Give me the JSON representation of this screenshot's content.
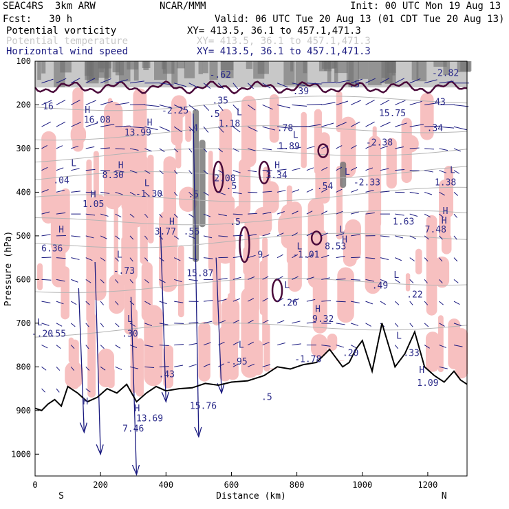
{
  "header": {
    "model": "SEAC4RS  3km ARW",
    "org": "NCAR/MMM",
    "init": "Init: 00 UTC Mon 19 Aug 13",
    "fcst": "Fcst:   30 h",
    "valid": "Valid: 06 UTC Tue 20 Aug 13 (01 CDT Tue 20 Aug 13)",
    "fields": [
      {
        "label": "Potential vorticity",
        "xy": "XY= 413.5, 36.1 to 457.1,471.3",
        "color": "#000000"
      },
      {
        "label": "Potential temperature",
        "xy": "XY= 413.5, 36.1 to 457.1,471.3",
        "color": "#b4b4b4"
      },
      {
        "label": "Horizontal wind speed",
        "xy": "XY= 413.5, 36.1 to 457.1,471.3",
        "color": "#1a1a80"
      }
    ]
  },
  "chart_data": {
    "type": "cross-section",
    "xlabel": "Distance (km)",
    "ylabel": "Pressure (hPa)",
    "xlim": [
      0,
      1320
    ],
    "ylim": [
      1050,
      100
    ],
    "xticks": [
      0,
      200,
      400,
      600,
      800,
      1000,
      1200
    ],
    "yticks": [
      100,
      200,
      300,
      400,
      500,
      600,
      700,
      800,
      900,
      1000
    ],
    "endpoint_labels": {
      "left": "S",
      "right": "N"
    },
    "colors": {
      "pv_fill": "#f7c0c0",
      "pv_contour": "#4a0a3a",
      "theta_contour": "#b4b4b4",
      "wind_vector": "#1a1a80",
      "terrain": "#000000",
      "high_pv_shade": "#707070"
    },
    "terrain_profile": {
      "x": [
        0,
        20,
        40,
        60,
        80,
        100,
        130,
        160,
        190,
        220,
        250,
        280,
        310,
        340,
        370,
        400,
        440,
        480,
        520,
        560,
        600,
        650,
        700,
        740,
        780,
        820,
        860,
        900,
        940,
        960,
        980,
        1000,
        1030,
        1060,
        1080,
        1100,
        1130,
        1160,
        1190,
        1220,
        1250,
        1280,
        1300,
        1320
      ],
      "p": [
        895,
        900,
        885,
        875,
        890,
        845,
        860,
        880,
        870,
        850,
        860,
        840,
        880,
        860,
        845,
        855,
        850,
        848,
        838,
        842,
        835,
        832,
        820,
        800,
        805,
        795,
        790,
        760,
        800,
        790,
        760,
        740,
        810,
        700,
        750,
        800,
        770,
        720,
        800,
        820,
        835,
        810,
        830,
        840
      ]
    },
    "annotations": [
      {
        "text": "16",
        "x": 40,
        "p": 210
      },
      {
        "text": "H",
        "x": 160,
        "p": 218
      },
      {
        "text": "16.08",
        "x": 190,
        "p": 241
      },
      {
        "text": "H",
        "x": 350,
        "p": 247
      },
      {
        "text": "13.99",
        "x": 314,
        "p": 270
      },
      {
        "text": "-2.25",
        "x": 428,
        "p": 220
      },
      {
        "text": ".4",
        "x": 482,
        "p": 260
      },
      {
        "text": ".5",
        "x": 548,
        "p": 228
      },
      {
        "text": "L",
        "x": 624,
        "p": 224
      },
      {
        "text": "1.18",
        "x": 594,
        "p": 250
      },
      {
        "text": ".78",
        "x": 764,
        "p": 260
      },
      {
        "text": "L",
        "x": 796,
        "p": 276
      },
      {
        "text": "1.89",
        "x": 776,
        "p": 302
      },
      {
        "text": "15.75",
        "x": 1092,
        "p": 226
      },
      {
        "text": "-2.38",
        "x": 1052,
        "p": 293
      },
      {
        "text": ".34",
        "x": 1222,
        "p": 260
      },
      {
        "text": "L",
        "x": 118,
        "p": 340
      },
      {
        "text": ".04",
        "x": 80,
        "p": 380
      },
      {
        "text": "H",
        "x": 262,
        "p": 345
      },
      {
        "text": "8.30",
        "x": 238,
        "p": 368
      },
      {
        "text": "H",
        "x": 178,
        "p": 412
      },
      {
        "text": "1.05",
        "x": 178,
        "p": 434
      },
      {
        "text": "L",
        "x": 342,
        "p": 386
      },
      {
        "text": "-1.30",
        "x": 348,
        "p": 410
      },
      {
        "text": ".5",
        "x": 484,
        "p": 412
      },
      {
        "text": "2.08",
        "x": 580,
        "p": 375
      },
      {
        "text": ".5",
        "x": 600,
        "p": 393
      },
      {
        "text": "H",
        "x": 740,
        "p": 345
      },
      {
        "text": "3.34",
        "x": 738,
        "p": 368
      },
      {
        "text": "L",
        "x": 954,
        "p": 360
      },
      {
        "text": "-2.33",
        "x": 1014,
        "p": 384
      },
      {
        "text": ".54",
        "x": 886,
        "p": 393
      },
      {
        "text": "L",
        "x": 1276,
        "p": 356
      },
      {
        "text": "1.38",
        "x": 1254,
        "p": 384
      },
      {
        "text": "H",
        "x": 1254,
        "p": 450
      },
      {
        "text": "1.63",
        "x": 1126,
        "p": 474
      },
      {
        "text": "7.48",
        "x": 1224,
        "p": 492
      },
      {
        "text": "H",
        "x": 1250,
        "p": 472
      },
      {
        "text": "H",
        "x": 80,
        "p": 492
      },
      {
        "text": "6.36",
        "x": 52,
        "p": 536
      },
      {
        "text": "H",
        "x": 418,
        "p": 474
      },
      {
        "text": "3.77",
        "x": 398,
        "p": 497
      },
      {
        "text": ".56",
        "x": 478,
        "p": 497
      },
      {
        "text": ".5",
        "x": 612,
        "p": 475
      },
      {
        "text": "L",
        "x": 258,
        "p": 550
      },
      {
        "text": "-.73",
        "x": 272,
        "p": 587
      },
      {
        "text": "15.87",
        "x": 504,
        "p": 592
      },
      {
        "text": "9",
        "x": 688,
        "p": 550
      },
      {
        "text": "L",
        "x": 808,
        "p": 531
      },
      {
        "text": "-1.01",
        "x": 828,
        "p": 550
      },
      {
        "text": "L",
        "x": 938,
        "p": 492
      },
      {
        "text": "8.53",
        "x": 918,
        "p": 531
      },
      {
        "text": "H",
        "x": 946,
        "p": 515
      },
      {
        "text": ".49",
        "x": 1054,
        "p": 621
      },
      {
        "text": "L",
        "x": 1104,
        "p": 596
      },
      {
        "text": ".22",
        "x": 1160,
        "p": 641
      },
      {
        "text": "L",
        "x": 770,
        "p": 620
      },
      {
        "text": ".26",
        "x": 778,
        "p": 660
      },
      {
        "text": "H",
        "x": 864,
        "p": 674
      },
      {
        "text": "9.32",
        "x": 880,
        "p": 697
      },
      {
        "text": "L",
        "x": 14,
        "p": 705
      },
      {
        "text": "-.20",
        "x": 22,
        "p": 731
      },
      {
        "text": ".55",
        "x": 70,
        "p": 731
      },
      {
        "text": "L",
        "x": 290,
        "p": 697
      },
      {
        "text": ".30",
        "x": 290,
        "p": 731
      },
      {
        "text": "L",
        "x": 630,
        "p": 756
      },
      {
        "text": "-.95",
        "x": 616,
        "p": 795
      },
      {
        "text": "-1.78",
        "x": 834,
        "p": 789
      },
      {
        "text": ".20",
        "x": 964,
        "p": 775
      },
      {
        "text": "L",
        "x": 1112,
        "p": 736
      },
      {
        "text": ".33",
        "x": 1150,
        "p": 775
      },
      {
        "text": ".43",
        "x": 402,
        "p": 824
      },
      {
        "text": "H",
        "x": 1182,
        "p": 814
      },
      {
        "text": "1.09",
        "x": 1200,
        "p": 844
      },
      {
        "text": ".5",
        "x": 708,
        "p": 876
      },
      {
        "text": "H",
        "x": 154,
        "p": 886
      },
      {
        "text": "H",
        "x": 312,
        "p": 902
      },
      {
        "text": "13.69",
        "x": 350,
        "p": 925
      },
      {
        "text": "7.46",
        "x": 300,
        "p": 948
      },
      {
        "text": "15.76",
        "x": 514,
        "p": 896
      },
      {
        "text": "-.62",
        "x": 566,
        "p": 138
      },
      {
        "text": ".35",
        "x": 566,
        "p": 197
      },
      {
        "text": ".39",
        "x": 812,
        "p": 176
      },
      {
        "text": ".5",
        "x": 976,
        "p": 160
      },
      {
        "text": "-2.82",
        "x": 1254,
        "p": 134
      },
      {
        "text": "43",
        "x": 1238,
        "p": 200
      }
    ]
  }
}
